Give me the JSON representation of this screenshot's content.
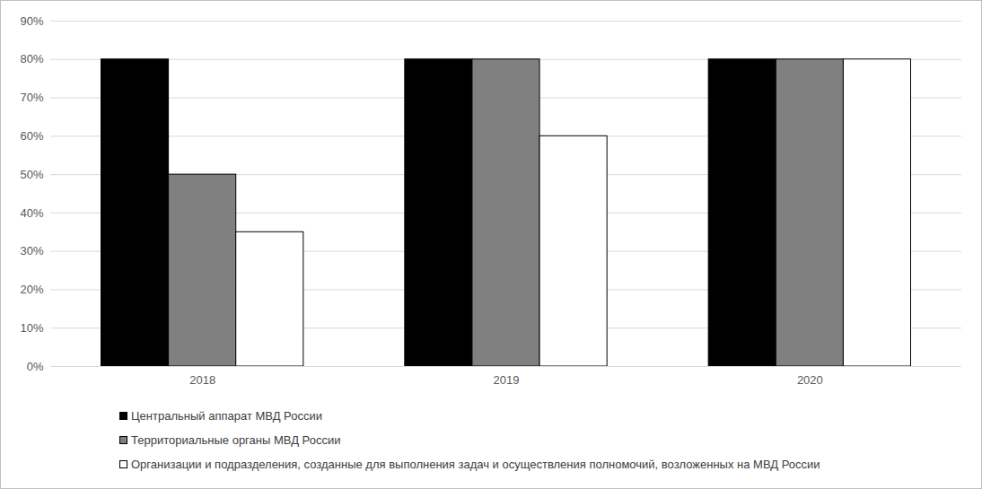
{
  "chart_data": {
    "type": "bar",
    "categories": [
      "2018",
      "2019",
      "2020"
    ],
    "series": [
      {
        "name": "Центральный аппарат МВД России",
        "color": "#000000",
        "values": [
          80,
          80,
          80
        ]
      },
      {
        "name": "Территориальные органы МВД России",
        "color": "#808080",
        "values": [
          50,
          80,
          80
        ]
      },
      {
        "name": "Организации и подразделения, созданные для выполнения задач и осуществления полномочий, возложенных на МВД России",
        "color": "#ffffff",
        "values": [
          35,
          60,
          80
        ]
      }
    ],
    "ylim": [
      0,
      90
    ],
    "yticks": [
      {
        "value": 0,
        "label": "0%"
      },
      {
        "value": 10,
        "label": "10%"
      },
      {
        "value": 20,
        "label": "20%"
      },
      {
        "value": 30,
        "label": "30%"
      },
      {
        "value": 40,
        "label": "40%"
      },
      {
        "value": 50,
        "label": "50%"
      },
      {
        "value": 60,
        "label": "60%"
      },
      {
        "value": 70,
        "label": "70%"
      },
      {
        "value": 80,
        "label": "80%"
      },
      {
        "value": 90,
        "label": "90%"
      }
    ],
    "grid": true,
    "legend": "bottom"
  }
}
